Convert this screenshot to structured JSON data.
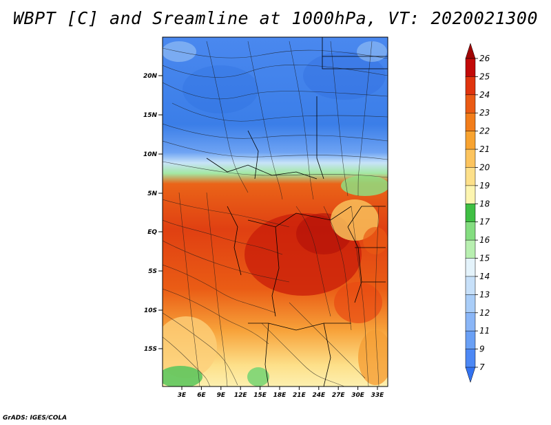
{
  "title": "WBPT [C] and Sreamline at 1000hPa, VT: 2020021300",
  "footer": "GrADS: IGES/COLA",
  "map": {
    "lat_labels": [
      "20N",
      "15N",
      "10N",
      "5N",
      "EQ",
      "5S",
      "10S",
      "15S"
    ],
    "lon_labels": [
      "3E",
      "6E",
      "9E",
      "12E",
      "15E",
      "18E",
      "21E",
      "24E",
      "27E",
      "30E",
      "33E"
    ]
  },
  "colorbar": {
    "labels": [
      "7",
      "9",
      "11",
      "12",
      "13",
      "14",
      "15",
      "16",
      "17",
      "18",
      "19",
      "20",
      "21",
      "22",
      "23",
      "24",
      "25",
      "26"
    ],
    "colors": [
      "#3372f0",
      "#4d88f5",
      "#6aa0f5",
      "#8ab6f7",
      "#a9cdf8",
      "#c7e0f9",
      "#e4f3fb",
      "#b8efb0",
      "#84dd80",
      "#3fbf43",
      "#fdf5b0",
      "#fde08a",
      "#fcc45e",
      "#f8a330",
      "#f27d1a",
      "#ea5a14",
      "#e0340e",
      "#c20a08",
      "#a00606"
    ]
  }
}
